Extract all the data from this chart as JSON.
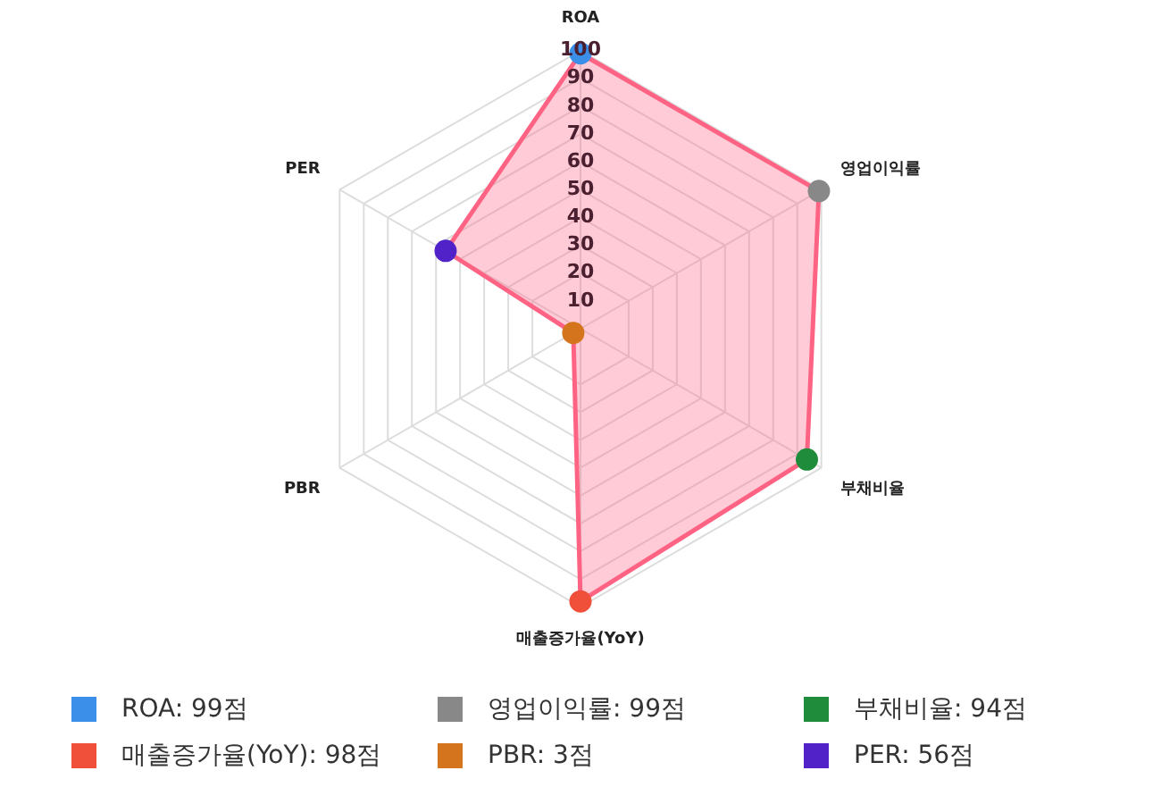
{
  "chart_data": {
    "type": "radar",
    "categories": [
      "ROA",
      "영업이익률",
      "부채비율",
      "매출증가율(YoY)",
      "PBR",
      "PER"
    ],
    "series": [
      {
        "color": "#ff6384",
        "values": [
          99,
          99,
          94,
          98,
          3,
          56
        ],
        "colors": [
          "#3b8fe8",
          "#888888",
          "#1e8c3a",
          "#f0503a",
          "#d4741c",
          "#5022c8"
        ]
      }
    ],
    "annotations": [
      "ROA: 99점",
      "영업이익률: 99점",
      "부채비율: 94점",
      "매출증가율(YoY): 98점",
      "PBR: 3점",
      "PER: 56점"
    ],
    "ylim": [
      0,
      100
    ],
    "yticks": [
      10,
      20,
      30,
      40,
      50,
      60,
      70,
      80,
      90,
      100
    ],
    "grid": true,
    "marker": "circle"
  }
}
